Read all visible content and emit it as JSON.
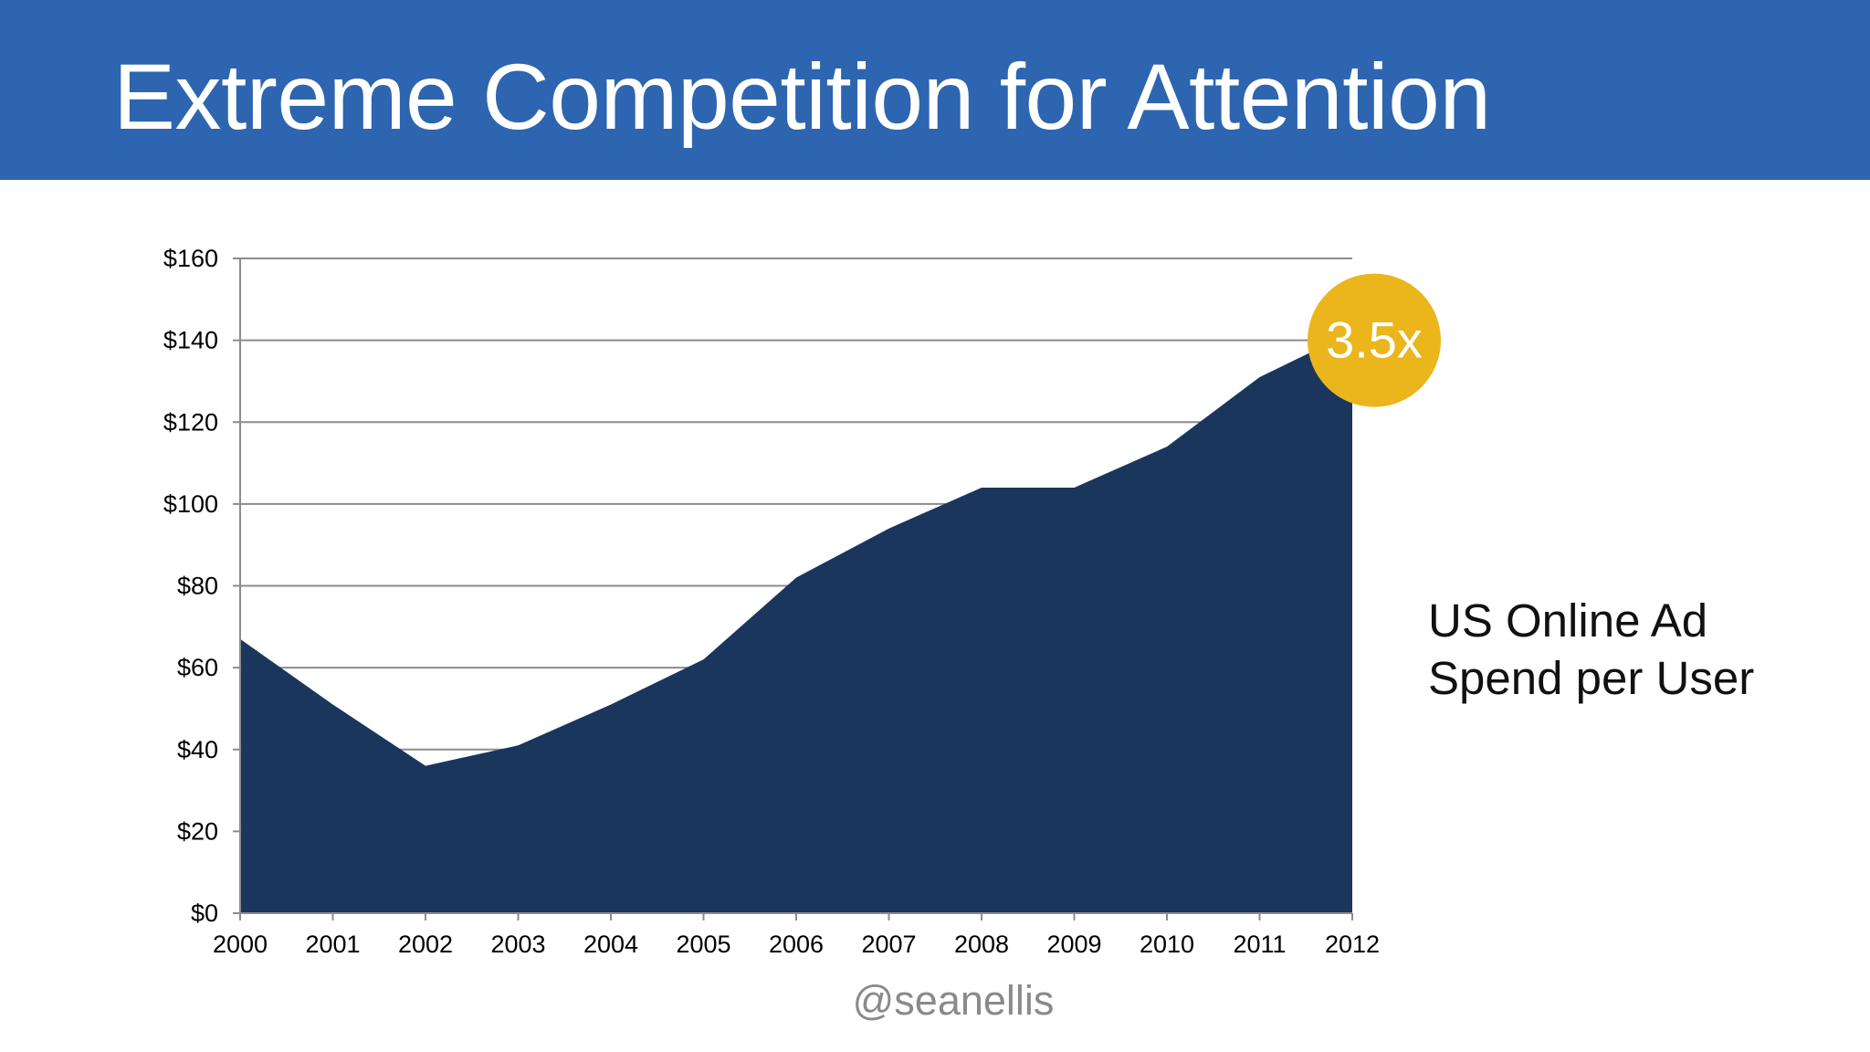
{
  "slide": {
    "title": "Extreme Competition for Attention",
    "side_label_lines": [
      "US Online Ad",
      "Spend per User"
    ],
    "handle": "@seanellis"
  },
  "colors": {
    "header": "#2d65b0",
    "area_fill": "#1b365d",
    "badge": "#ebb51c",
    "gridline": "#8c8c8c"
  },
  "chart_data": {
    "type": "area",
    "x": [
      "2000",
      "2001",
      "2002",
      "2003",
      "2004",
      "2005",
      "2006",
      "2007",
      "2008",
      "2009",
      "2010",
      "2011",
      "2012"
    ],
    "series": [
      {
        "values": [
          67,
          51,
          36,
          41,
          51,
          62,
          82,
          94,
          104,
          104,
          114,
          131,
          142
        ]
      }
    ],
    "y_ticks": [
      "$0",
      "$20",
      "$40",
      "$60",
      "$80",
      "$100",
      "$120",
      "$140",
      "$160"
    ],
    "ylim": [
      0,
      160
    ],
    "y_step": 20,
    "grid": true,
    "title": "",
    "xlabel": "",
    "ylabel": "",
    "annotation": {
      "text": "3.5x",
      "x": "2012",
      "y": 140
    }
  }
}
